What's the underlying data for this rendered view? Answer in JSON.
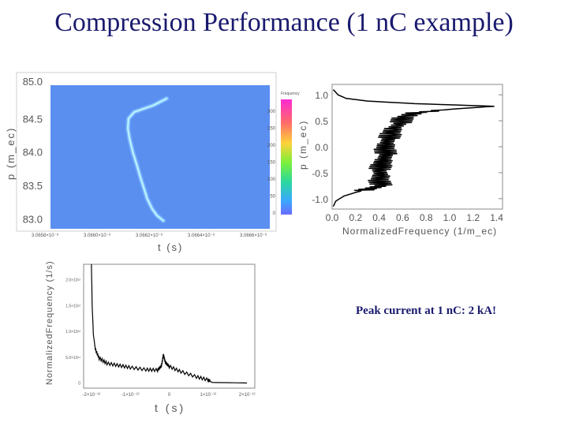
{
  "slide": {
    "title": "Compression Performance (1 nC example)",
    "caption": "Peak current at 1 nC: 2 kA!"
  },
  "colors": {
    "title": "#1a1a6e",
    "heatmap_background": "#5a8ff0",
    "beam": "#a8e8ff",
    "curve": "#000000"
  },
  "chart_data": [
    {
      "type": "heatmap",
      "xlabel": "t (s)",
      "ylabel": "p (m_ec)",
      "x_ticks": [
        "3.0658×10⁻⁸",
        "3.0660×10⁻⁸",
        "3.0662×10⁻⁸",
        "3.0664×10⁻⁸",
        "3.0666×10⁻⁸"
      ],
      "y_ticks": [
        "85.0",
        "84.5",
        "84.0",
        "83.5",
        "83.0"
      ],
      "ylim": [
        82.85,
        85.0
      ],
      "colorbar": {
        "title": "Frequency",
        "ticks": [
          "300",
          "250",
          "200",
          "150",
          "100",
          "50",
          "0"
        ],
        "colors": [
          "#ff2ad4",
          "#ff6a6a",
          "#ffd23a",
          "#7af03a",
          "#2ad8a0",
          "#3aa8ff",
          "#6a6aff"
        ]
      },
      "beam_trace": [
        {
          "t": 3.06624,
          "p": 84.8
        },
        {
          "t": 3.0662,
          "p": 84.7
        },
        {
          "t": 3.06614,
          "p": 84.6
        },
        {
          "t": 3.066122,
          "p": 84.5
        },
        {
          "t": 3.06612,
          "p": 84.35
        },
        {
          "t": 3.066125,
          "p": 84.2
        },
        {
          "t": 3.066135,
          "p": 84.0
        },
        {
          "t": 3.066148,
          "p": 83.8
        },
        {
          "t": 3.06616,
          "p": 83.6
        },
        {
          "t": 3.06617,
          "p": 83.45
        },
        {
          "t": 3.06618,
          "p": 83.3
        },
        {
          "t": 3.066195,
          "p": 83.15
        },
        {
          "t": 3.06621,
          "p": 83.05
        },
        {
          "t": 3.06623,
          "p": 82.97
        }
      ]
    },
    {
      "type": "line",
      "xlabel": "NormalizedFrequency (1/m_ec)",
      "ylabel": "p (m_ec)",
      "x_ticks": [
        "0.0",
        "0.2",
        "0.4",
        "0.6",
        "0.8",
        "1.0",
        "1.2",
        "1.4"
      ],
      "y_ticks": [
        "1.0",
        "0.5",
        "0.0",
        "-0.5",
        "-1.0"
      ],
      "xlim": [
        0,
        1.45
      ],
      "ylim": [
        -1.2,
        1.2
      ],
      "series": [
        {
          "points": [
            {
              "y": 1.1,
              "x": 0.01
            },
            {
              "y": 1.0,
              "x": 0.05
            },
            {
              "y": 0.93,
              "x": 0.12
            },
            {
              "y": 0.88,
              "x": 0.3
            },
            {
              "y": 0.83,
              "x": 0.7
            },
            {
              "y": 0.78,
              "x": 1.38
            },
            {
              "y": 0.72,
              "x": 1.0
            },
            {
              "y": 0.65,
              "x": 0.7
            },
            {
              "y": 0.55,
              "x": 0.6
            },
            {
              "y": 0.45,
              "x": 0.58
            },
            {
              "y": 0.35,
              "x": 0.52
            },
            {
              "y": 0.25,
              "x": 0.5
            },
            {
              "y": 0.15,
              "x": 0.48
            },
            {
              "y": 0.05,
              "x": 0.46
            },
            {
              "y": -0.05,
              "x": 0.45
            },
            {
              "y": -0.15,
              "x": 0.46
            },
            {
              "y": -0.25,
              "x": 0.44
            },
            {
              "y": -0.35,
              "x": 0.42
            },
            {
              "y": -0.45,
              "x": 0.4
            },
            {
              "y": -0.55,
              "x": 0.42
            },
            {
              "y": -0.65,
              "x": 0.4
            },
            {
              "y": -0.75,
              "x": 0.42
            },
            {
              "y": -0.82,
              "x": 0.3
            },
            {
              "y": -0.88,
              "x": 0.2
            },
            {
              "y": -0.95,
              "x": 0.1
            },
            {
              "y": -1.05,
              "x": 0.03
            },
            {
              "y": -1.15,
              "x": 0.01
            }
          ]
        }
      ]
    },
    {
      "type": "line",
      "xlabel": "t (s)",
      "ylabel": "NormalizedFrequency (1/s)",
      "x_ticks": [
        "-2×10⁻¹²",
        "-1×10⁻¹²",
        "0",
        "1×10⁻¹²",
        "2×10⁻¹²"
      ],
      "y_ticks": [
        "2.0×10¹²",
        "1.5×10¹²",
        "1.0×10¹²",
        "5.0×10¹¹",
        "0"
      ],
      "xlim": [
        -2.2e-12,
        2.2e-12
      ],
      "ylim": [
        -100000000000.0,
        2300000000000.0
      ],
      "series": [
        {
          "points": [
            {
              "t": -2e-12,
              "f": 2300000000000.0
            },
            {
              "t": -1.98e-12,
              "f": 1500000000000.0
            },
            {
              "t": -1.95e-12,
              "f": 950000000000.0
            },
            {
              "t": -1.9e-12,
              "f": 650000000000.0
            },
            {
              "t": -1.8e-12,
              "f": 480000000000.0
            },
            {
              "t": -1.6e-12,
              "f": 380000000000.0
            },
            {
              "t": -1.3e-12,
              "f": 340000000000.0
            },
            {
              "t": -1e-12,
              "f": 300000000000.0
            },
            {
              "t": -6e-13,
              "f": 260000000000.0
            },
            {
              "t": -3e-13,
              "f": 250000000000.0
            },
            {
              "t": -2e-13,
              "f": 330000000000.0
            },
            {
              "t": -1.5e-13,
              "f": 550000000000.0
            },
            {
              "t": -1e-13,
              "f": 400000000000.0
            },
            {
              "t": 0.0,
              "f": 320000000000.0
            },
            {
              "t": 3e-13,
              "f": 220000000000.0
            },
            {
              "t": 7e-13,
              "f": 120000000000.0
            },
            {
              "t": 1e-12,
              "f": 60000000000.0
            },
            {
              "t": 1.1e-12,
              "f": 10000000000.0
            },
            {
              "t": 2e-12,
              "f": 0.0
            }
          ]
        }
      ]
    }
  ]
}
